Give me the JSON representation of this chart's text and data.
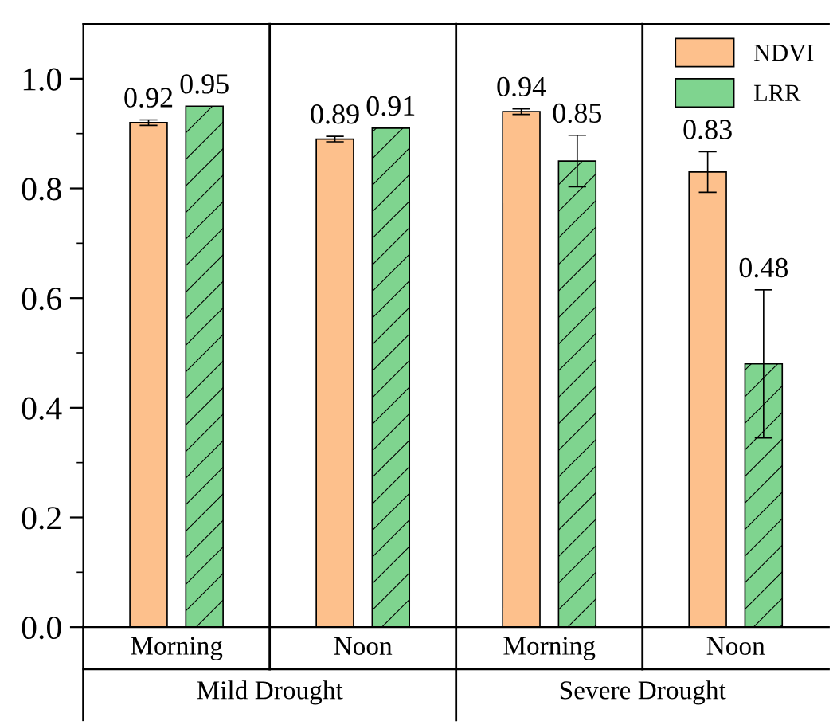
{
  "chart_data": {
    "type": "bar",
    "categories": [
      "Morning",
      "Noon",
      "Morning",
      "Noon"
    ],
    "series": [
      {
        "name": "NDVI",
        "color": "#fdc08c",
        "values": [
          0.92,
          0.89,
          0.94,
          0.83
        ],
        "errors": [
          0.005,
          0.005,
          0.005,
          0.037
        ]
      },
      {
        "name": "LRR",
        "color": "#7fd48f",
        "values": [
          0.95,
          0.91,
          0.85,
          0.48
        ],
        "errors": [
          null,
          null,
          0.047,
          0.135
        ]
      }
    ],
    "annotations": [
      "Mild Drought",
      "Severe Drought"
    ],
    "ylim": [
      0,
      1.1
    ],
    "yticks": [
      {
        "value": 0,
        "label": "0.0"
      },
      {
        "value": 0.1,
        "label": null
      },
      0.2,
      {
        "value": 0.3,
        "label": null
      },
      0.4,
      {
        "value": 0.5,
        "label": null
      },
      0.6,
      {
        "value": 0.7,
        "label": null
      },
      0.8,
      {
        "value": 0.9,
        "label": null
      },
      {
        "value": 1,
        "label": "1.0"
      }
    ],
    "data_labels": true,
    "legend": "top right",
    "grid": false
  }
}
